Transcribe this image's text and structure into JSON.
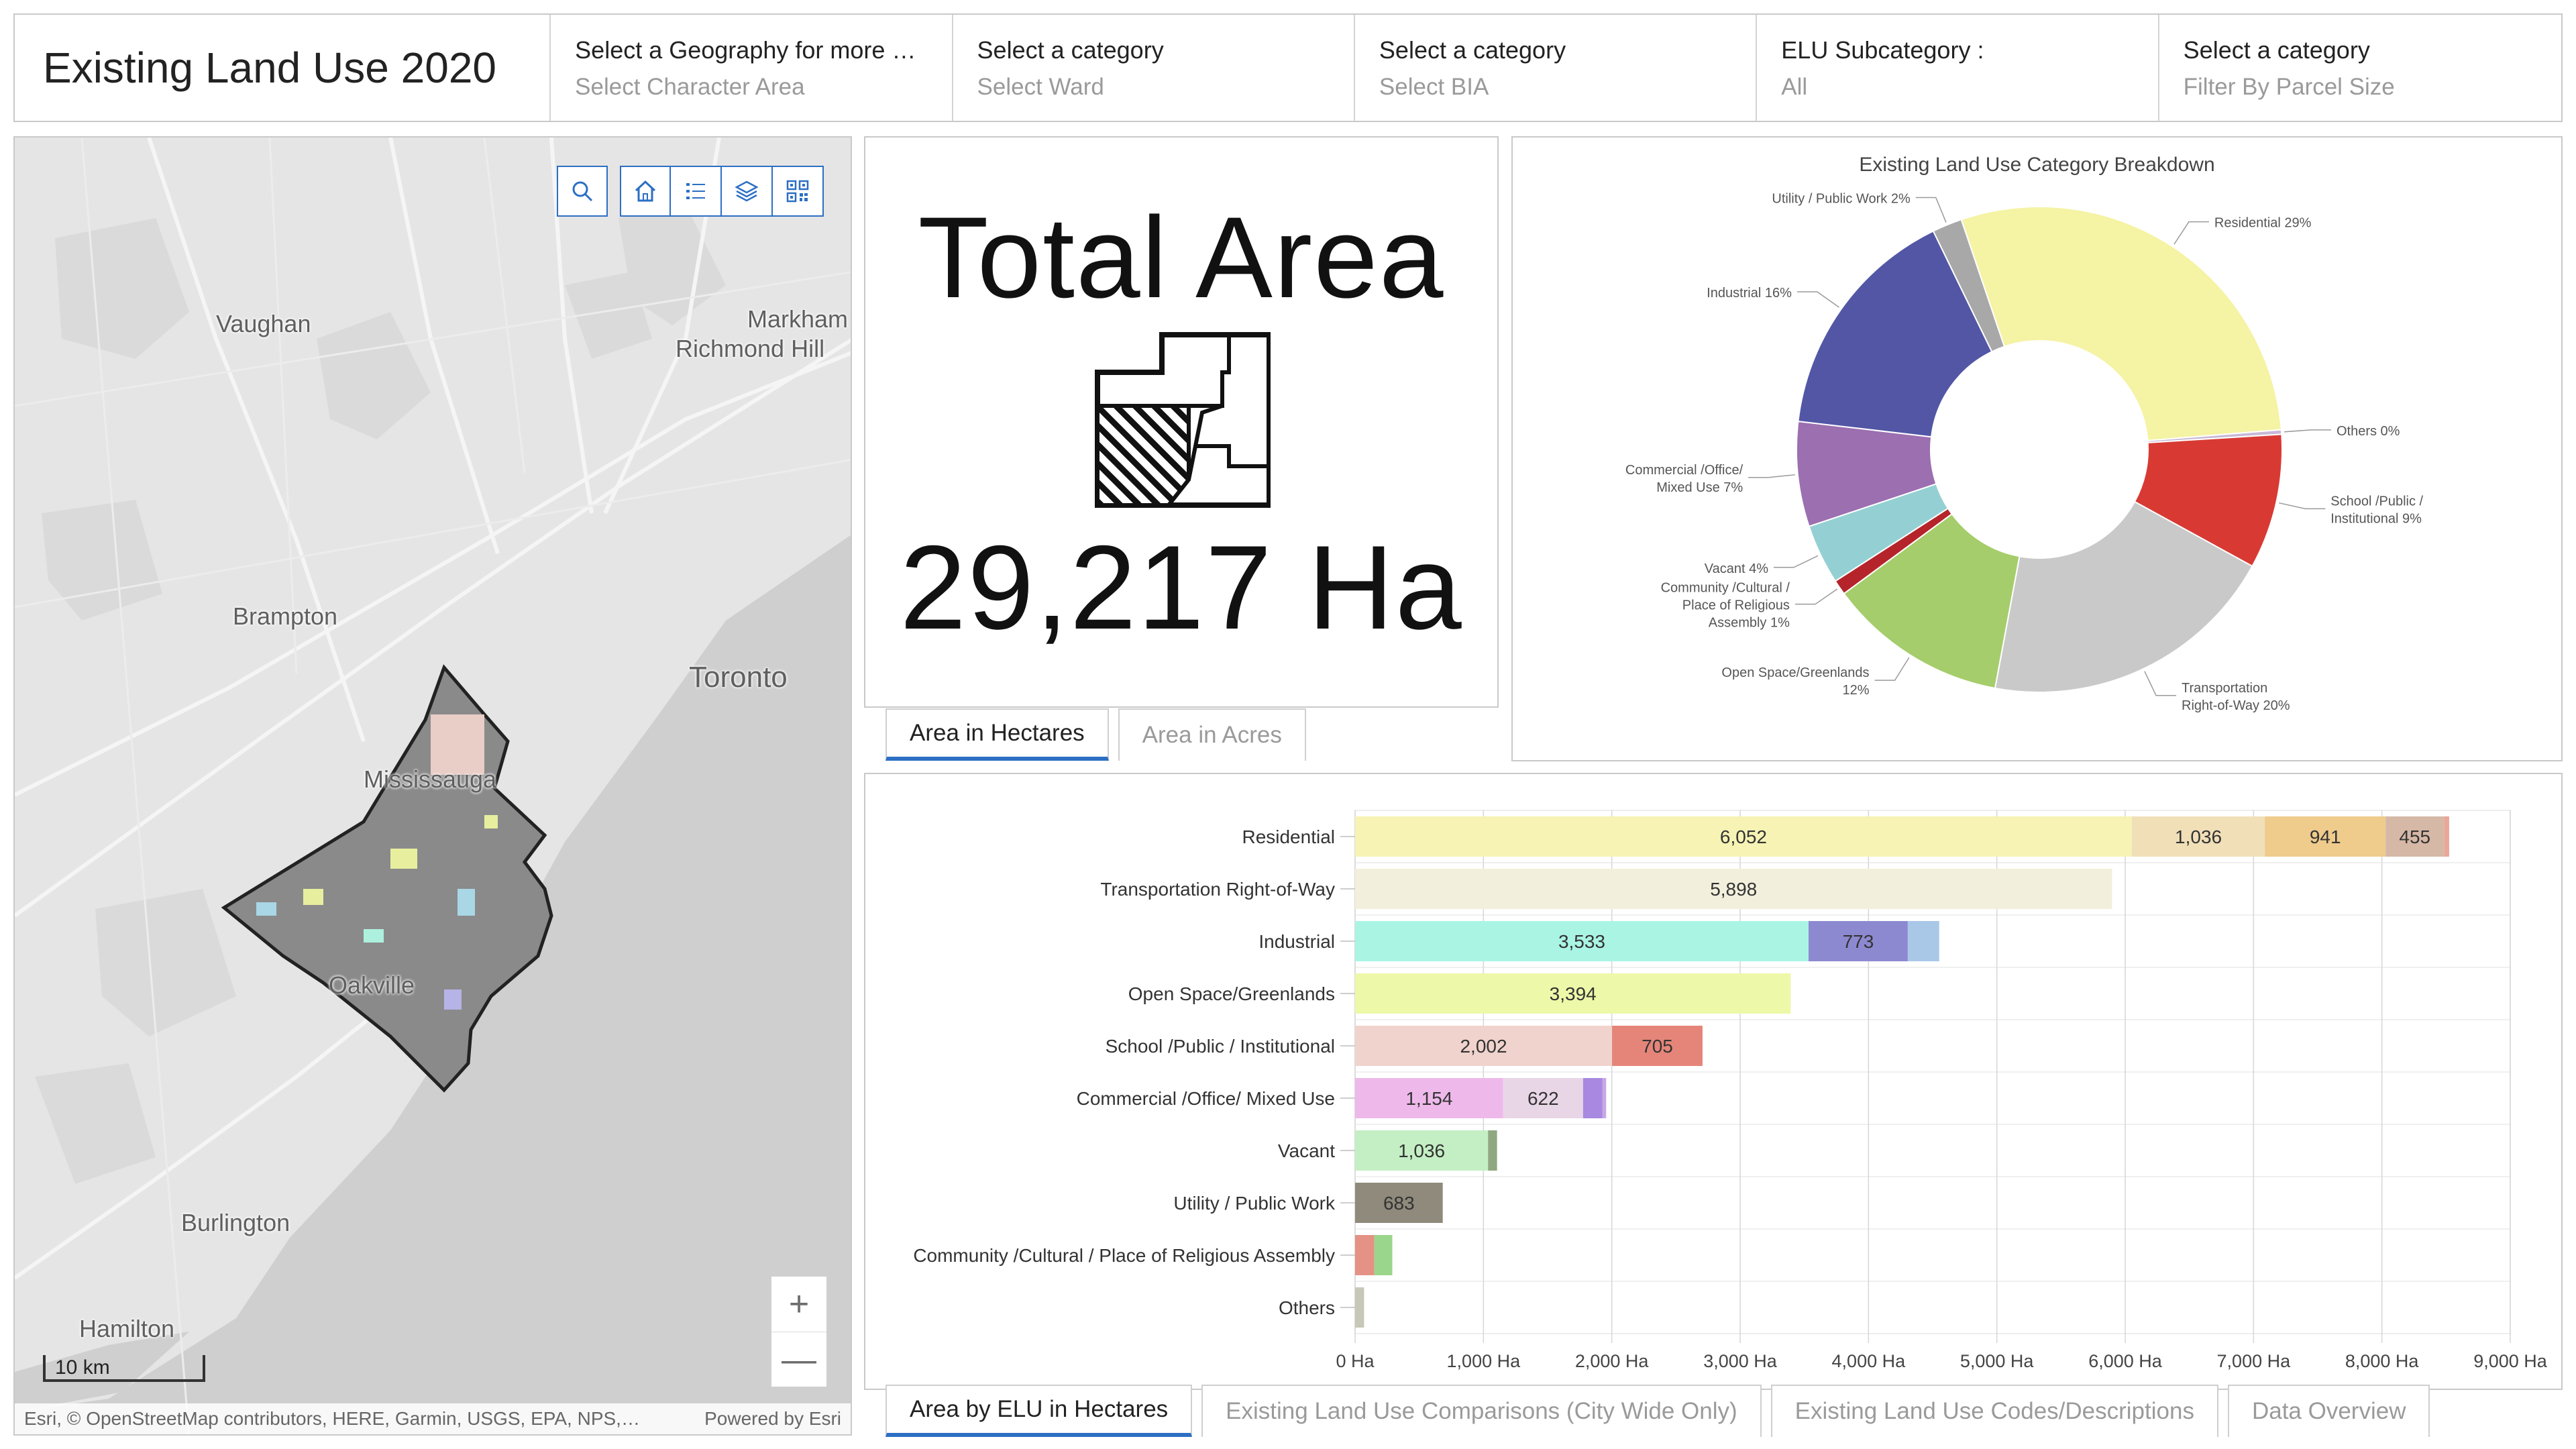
{
  "header": {
    "title": "Existing Land Use 2020",
    "selectors": [
      {
        "label": "Select a Geography for more …",
        "value": "Select Character Area"
      },
      {
        "label": "Select a category",
        "value": "Select Ward"
      },
      {
        "label": "Select a category",
        "value": "Select BIA"
      },
      {
        "label": "ELU Subcategory :",
        "value": "All"
      },
      {
        "label": "Select a category",
        "value": "Filter By Parcel Size"
      }
    ]
  },
  "map": {
    "labels": {
      "vaughan": "Vaughan",
      "markham": "Markham",
      "richmond_hill": "Richmond Hill",
      "brampton": "Brampton",
      "toronto": "Toronto",
      "mississauga": "Mississauga",
      "oakville": "Oakville",
      "burlington": "Burlington",
      "hamilton": "Hamilton"
    },
    "tools": [
      "search-icon",
      "home-icon",
      "legend-list-icon",
      "layers-icon",
      "qr-code-icon"
    ],
    "zoom_in": "+",
    "zoom_out": "—",
    "scale": "10 km",
    "attribution": "Esri, © OpenStreetMap contributors, HERE, Garmin, USGS, EPA, NPS,…",
    "powered_by": "Powered by Esri"
  },
  "total_area": {
    "title": "Total Area",
    "value": "29,217 Ha",
    "tabs": [
      "Area in Hectares",
      "Area in Acres"
    ]
  },
  "bottom_tabs": [
    "Area by ELU in Hectares",
    "Existing Land Use Comparisons (City Wide Only)",
    "Existing Land Use Codes/Descriptions",
    "Data Overview"
  ],
  "chart_data": [
    {
      "type": "pie",
      "title": "Existing Land Use Category Breakdown",
      "slices": [
        {
          "label": "Utility / Public Work 2%",
          "value": 2,
          "color": "#a8a8a8"
        },
        {
          "label": "Residential 29%",
          "value": 29,
          "color": "#f5f3a4"
        },
        {
          "label": "Others 0%",
          "value": 0.3,
          "color": "#c8b9d6"
        },
        {
          "label": "School /Public / Institutional 9%",
          "value": 9,
          "color": "#d83a33"
        },
        {
          "label": "Transportation Right-of-Way 20%",
          "value": 20,
          "color": "#c9c9c9"
        },
        {
          "label": "Open Space/Greenlands 12%",
          "value": 12,
          "color": "#a5cd6b"
        },
        {
          "label": "Community /Cultural / Place of Religious Assembly 1%",
          "value": 1,
          "color": "#b5242a"
        },
        {
          "label": "Vacant 4%",
          "value": 4,
          "color": "#94d0d3"
        },
        {
          "label": "Commercial /Office/ Mixed Use 7%",
          "value": 7,
          "color": "#9b6fb0"
        },
        {
          "label": "Industrial 16%",
          "value": 16,
          "color": "#5256a5"
        }
      ]
    },
    {
      "type": "bar",
      "orientation": "horizontal",
      "stacked": true,
      "xlim": [
        0,
        9000
      ],
      "xticks": [
        "0 Ha",
        "1,000 Ha",
        "2,000 Ha",
        "3,000 Ha",
        "4,000 Ha",
        "5,000 Ha",
        "6,000 Ha",
        "7,000 Ha",
        "8,000 Ha",
        "9,000 Ha"
      ],
      "categories": [
        {
          "name": "Residential",
          "segments": [
            {
              "value": 6052,
              "label": "6,052",
              "color": "#f6f3b5"
            },
            {
              "value": 1036,
              "label": "1,036",
              "color": "#f1dfb8"
            },
            {
              "value": 941,
              "label": "941",
              "color": "#efcb8c"
            },
            {
              "value": 455,
              "label": "455",
              "color": "#d6b8a6"
            },
            {
              "value": 40,
              "label": "",
              "color": "#e9a79a"
            }
          ]
        },
        {
          "name": "Transportation Right-of-Way",
          "segments": [
            {
              "value": 5898,
              "label": "5,898",
              "color": "#f2f0dc"
            }
          ]
        },
        {
          "name": "Industrial",
          "segments": [
            {
              "value": 3533,
              "label": "3,533",
              "color": "#aaf4e4"
            },
            {
              "value": 773,
              "label": "773",
              "color": "#8d89d1"
            },
            {
              "value": 245,
              "label": "",
              "color": "#a9c8e8"
            }
          ]
        },
        {
          "name": "Open Space/Greenlands",
          "segments": [
            {
              "value": 3394,
              "label": "3,394",
              "color": "#eef8a9"
            }
          ]
        },
        {
          "name": "School /Public / Institutional",
          "segments": [
            {
              "value": 2002,
              "label": "2,002",
              "color": "#f1d3cd"
            },
            {
              "value": 705,
              "label": "705",
              "color": "#e58579"
            }
          ]
        },
        {
          "name": "Commercial /Office/ Mixed Use",
          "segments": [
            {
              "value": 1154,
              "label": "1,154",
              "color": "#eeb9ea"
            },
            {
              "value": 622,
              "label": "622",
              "color": "#e8d6e6"
            },
            {
              "value": 150,
              "label": "",
              "color": "#a888e0"
            },
            {
              "value": 30,
              "label": "",
              "color": "#c7a6e6"
            }
          ]
        },
        {
          "name": "Vacant",
          "segments": [
            {
              "value": 1036,
              "label": "1,036",
              "color": "#c4efc4"
            },
            {
              "value": 70,
              "label": "",
              "color": "#8fa880"
            }
          ]
        },
        {
          "name": "Utility / Public Work",
          "segments": [
            {
              "value": 683,
              "label": "683",
              "color": "#8f8a7b"
            }
          ]
        },
        {
          "name": "Community /Cultural / Place of Religious Assembly",
          "segments": [
            {
              "value": 150,
              "label": "",
              "color": "#e39285"
            },
            {
              "value": 140,
              "label": "",
              "color": "#9ad68b"
            }
          ]
        },
        {
          "name": "Others",
          "segments": [
            {
              "value": 70,
              "label": "",
              "color": "#c8c8b8"
            }
          ]
        }
      ]
    }
  ]
}
